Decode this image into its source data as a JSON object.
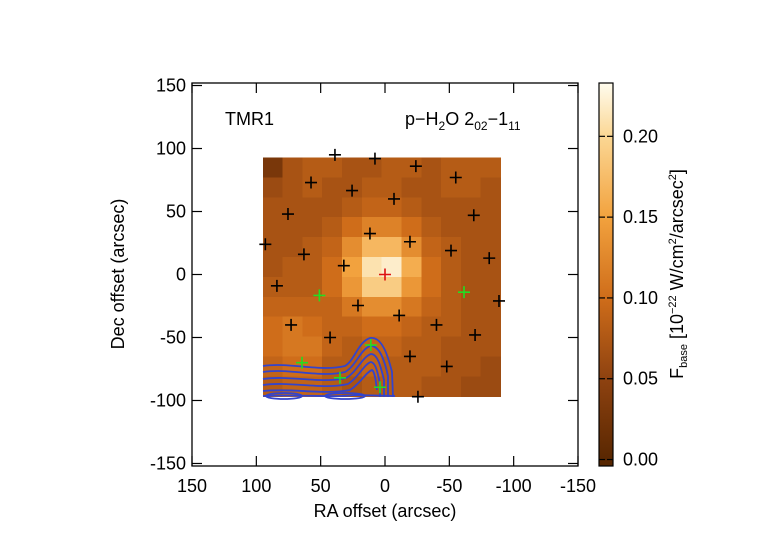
{
  "chart_data": {
    "type": "map",
    "xlabel": "RA offset (arcsec)",
    "ylabel": "Dec offset (arcsec)",
    "annotation": "TMR1",
    "line_label": [
      "p−H",
      "2",
      "O 2",
      "02",
      "−1",
      "11"
    ],
    "xlim": [
      150,
      -150
    ],
    "ylim": [
      -152,
      152
    ],
    "xticks": [
      150,
      100,
      50,
      0,
      -50,
      -100,
      -150
    ],
    "yticks": [
      150,
      100,
      50,
      0,
      -50,
      -100,
      -150
    ],
    "map": {
      "x": [
        87.3,
        71.9,
        56.5,
        41.1,
        25.7,
        10.3,
        -5.1,
        -20.5,
        -35.9,
        -51.3,
        -66.7,
        -82.1
      ],
      "y": [
        85,
        69.2,
        53.4,
        37.7,
        21.9,
        6.1,
        -9.8,
        -25.6,
        -41.4,
        -57.2,
        -73,
        -88.8
      ],
      "z": [
        [
          0.03,
          0.07,
          0.08,
          0.08,
          0.07,
          0.07,
          0.08,
          0.08,
          0.07,
          0.08,
          0.08,
          0.08
        ],
        [
          0.06,
          0.07,
          0.08,
          0.07,
          0.07,
          0.08,
          0.08,
          0.07,
          0.07,
          0.08,
          0.08,
          0.07
        ],
        [
          0.07,
          0.07,
          0.07,
          0.07,
          0.08,
          0.09,
          0.09,
          0.08,
          0.07,
          0.07,
          0.07,
          0.07
        ],
        [
          0.07,
          0.07,
          0.07,
          0.08,
          0.1,
          0.12,
          0.12,
          0.1,
          0.08,
          0.07,
          0.07,
          0.07
        ],
        [
          0.07,
          0.07,
          0.08,
          0.09,
          0.13,
          0.17,
          0.17,
          0.13,
          0.09,
          0.08,
          0.07,
          0.07
        ],
        [
          0.07,
          0.08,
          0.08,
          0.1,
          0.15,
          0.21,
          0.22,
          0.16,
          0.1,
          0.08,
          0.07,
          0.07
        ],
        [
          0.08,
          0.08,
          0.08,
          0.1,
          0.14,
          0.19,
          0.19,
          0.14,
          0.1,
          0.08,
          0.07,
          0.07
        ],
        [
          0.09,
          0.09,
          0.09,
          0.09,
          0.11,
          0.13,
          0.13,
          0.11,
          0.09,
          0.08,
          0.07,
          0.07
        ],
        [
          0.1,
          0.11,
          0.1,
          0.09,
          0.09,
          0.1,
          0.1,
          0.09,
          0.08,
          0.08,
          0.07,
          0.07
        ],
        [
          0.1,
          0.11,
          0.11,
          0.09,
          0.08,
          0.09,
          0.09,
          0.08,
          0.08,
          0.07,
          0.07,
          0.07
        ],
        [
          0.09,
          0.1,
          0.1,
          0.08,
          0.08,
          0.09,
          0.08,
          0.08,
          0.08,
          0.07,
          0.07,
          0.06
        ],
        [
          0.08,
          0.09,
          0.09,
          0.08,
          0.07,
          0.08,
          0.08,
          0.08,
          0.07,
          0.07,
          0.06,
          0.06
        ]
      ]
    },
    "series": [
      {
        "color": "#000000",
        "x": [
          38.9,
          7.8,
          -24,
          57.5,
          -55,
          25.6,
          -7,
          75.4,
          -69,
          11.7,
          -19.4,
          93,
          -51.3,
          63,
          -81,
          32,
          84,
          -88.6,
          21,
          -11,
          73,
          -40,
          42.7,
          -70,
          -19.4,
          -48,
          -25.6
        ],
        "y": [
          95,
          92,
          86,
          73,
          77,
          66.6,
          60,
          48,
          47,
          32.5,
          26,
          24,
          19,
          16,
          13,
          7,
          -9,
          -21,
          -24.6,
          -32.5,
          -40,
          -40,
          -50,
          -48,
          -65,
          -73,
          -97
        ]
      },
      {
        "color": "#22dd22",
        "x": [
          51,
          -61.4,
          64.5,
          35,
          11,
          3.9
        ],
        "y": [
          -16.6,
          -14,
          -70,
          -82,
          -56,
          -89.5
        ]
      },
      {
        "color": "#dd1111",
        "x": [
          0
        ],
        "y": [
          0
        ]
      }
    ],
    "colorbar": {
      "label": [
        "F",
        "base",
        " [10",
        "−22",
        " W/cm",
        "2",
        "/arcsec",
        "2",
        "]"
      ],
      "clim": [
        -0.004,
        0.233
      ],
      "ticks": [
        {
          "value": 0,
          "label": "0.00"
        },
        {
          "value": 0.05,
          "label": "0.05"
        },
        {
          "value": 0.1,
          "label": "0.10"
        },
        {
          "value": 0.15,
          "label": "0.15"
        },
        {
          "value": 0.2,
          "label": "0.20"
        }
      ],
      "colormap": [
        {
          "value": -0.004,
          "color": "#552500"
        },
        {
          "value": 0.05,
          "color": "#8e4210"
        },
        {
          "value": 0.1,
          "color": "#cf6d1a"
        },
        {
          "value": 0.15,
          "color": "#f2a23e"
        },
        {
          "value": 0.2,
          "color": "#fbd794"
        },
        {
          "value": 0.233,
          "color": "#fffcee"
        }
      ]
    }
  }
}
